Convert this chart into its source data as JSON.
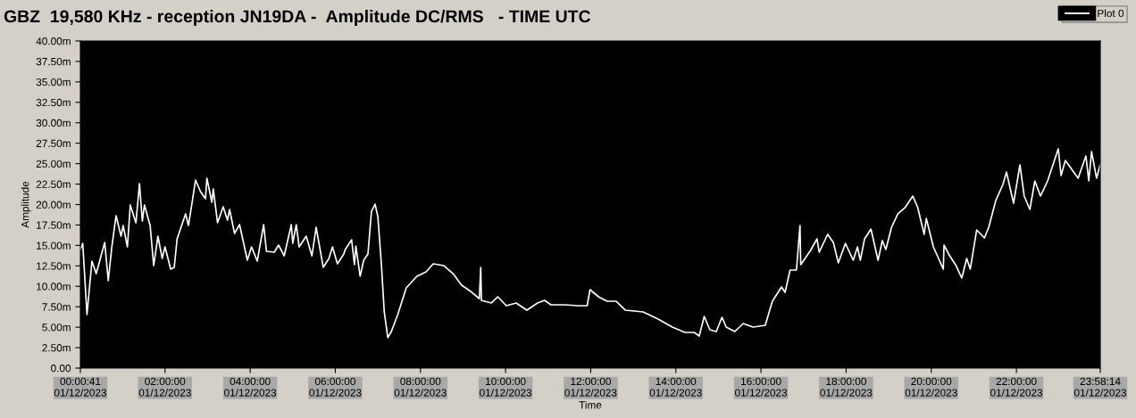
{
  "chart_data": {
    "type": "line",
    "title": "GBZ  19,580 KHz - reception JN19DA -  Amplitude DC/RMS   - TIME UTC",
    "xlabel": "Time",
    "ylabel": "Amplitude",
    "xlim": [
      "2023-12-01T00:00:41",
      "2023-12-01T23:58:14"
    ],
    "ylim": [
      0,
      40
    ],
    "xticks": [
      {
        "value": "2023-12-01T00:00:41",
        "label": "00:00:41\n01/12/2023"
      },
      {
        "value": "2023-12-01T02:00",
        "label": "02:00:00\n01/12/2023"
      },
      {
        "value": "2023-12-01T04:00",
        "label": "04:00:00\n01/12/2023"
      },
      {
        "value": "2023-12-01T06:00",
        "label": "06:00:00\n01/12/2023"
      },
      {
        "value": "2023-12-01T08:00",
        "label": "08:00:00\n01/12/2023"
      },
      {
        "value": "2023-12-01T10:00",
        "label": "10:00:00\n01/12/2023"
      },
      {
        "value": "2023-12-01T12:00",
        "label": "12:00:00\n01/12/2023"
      },
      {
        "value": "2023-12-01T14:00",
        "label": "14:00:00\n01/12/2023"
      },
      {
        "value": "2023-12-01T16:00",
        "label": "16:00:00\n01/12/2023"
      },
      {
        "value": "2023-12-01T18:00",
        "label": "18:00:00\n01/12/2023"
      },
      {
        "value": "2023-12-01T20:00",
        "label": "20:00:00\n01/12/2023"
      },
      {
        "value": "2023-12-01T22:00",
        "label": "22:00:00\n01/12/2023"
      },
      {
        "value": "2023-12-01T23:58:14",
        "label": "23:58:14\n01/12/2023"
      }
    ],
    "yticks": [
      {
        "value": 0,
        "label": "0.00"
      },
      {
        "value": 2.5,
        "label": "2.50m"
      },
      {
        "value": 5,
        "label": "5.00m"
      },
      {
        "value": 7.5,
        "label": "7.50m"
      },
      {
        "value": 10,
        "label": "10.00m"
      },
      {
        "value": 12.5,
        "label": "12.50m"
      },
      {
        "value": 15,
        "label": "15.00m"
      },
      {
        "value": 17.5,
        "label": "17.50m"
      },
      {
        "value": 20,
        "label": "20.00m"
      },
      {
        "value": 22.5,
        "label": "22.50m"
      },
      {
        "value": 25,
        "label": "25.00m"
      },
      {
        "value": 27.5,
        "label": "27.50m"
      },
      {
        "value": 30,
        "label": "30.00m"
      },
      {
        "value": 32.5,
        "label": "32.50m"
      },
      {
        "value": 35,
        "label": "35.00m"
      },
      {
        "value": 37.5,
        "label": "37.50m"
      },
      {
        "value": 40,
        "label": "40.00m"
      }
    ],
    "grid": false,
    "legend": "top right",
    "marker": "none",
    "line_style": "solid",
    "x": [
      "2023-12-01T00:00:41",
      "2023-12-01T00:04",
      "2023-12-01T00:10",
      "2023-12-01T00:13",
      "2023-12-01T00:17",
      "2023-12-01T00:23",
      "2023-12-01T00:35",
      "2023-12-01T00:40",
      "2023-12-01T00:45",
      "2023-12-01T00:51",
      "2023-12-01T00:58",
      "2023-12-01T01:01",
      "2023-12-01T01:07",
      "2023-12-01T01:11",
      "2023-12-01T01:19",
      "2023-12-01T01:24",
      "2023-12-01T01:28",
      "2023-12-01T01:31",
      "2023-12-01T01:39",
      "2023-12-01T01:44",
      "2023-12-01T01:50",
      "2023-12-01T01:56",
      "2023-12-01T02:00",
      "2023-12-01T02:08",
      "2023-12-01T02:13",
      "2023-12-01T02:17",
      "2023-12-01T02:29",
      "2023-12-01T02:33",
      "2023-12-01T02:38",
      "2023-12-01T02:43",
      "2023-12-01T02:50",
      "2023-12-01T02:57",
      "2023-12-01T02:59",
      "2023-12-01T03:06",
      "2023-12-01T03:08",
      "2023-12-01T03:14",
      "2023-12-01T03:22",
      "2023-12-01T03:28",
      "2023-12-01T03:31",
      "2023-12-01T03:38",
      "2023-12-01T03:45",
      "2023-12-01T03:50",
      "2023-12-01T03:56",
      "2023-12-01T04:02",
      "2023-12-01T04:10",
      "2023-12-01T04:19",
      "2023-12-01T04:23",
      "2023-12-01T04:34",
      "2023-12-01T04:40",
      "2023-12-01T04:48",
      "2023-12-01T04:58",
      "2023-12-01T05:00",
      "2023-12-01T05:05",
      "2023-12-01T05:09",
      "2023-12-01T05:19",
      "2023-12-01T05:27",
      "2023-12-01T05:33",
      "2023-12-01T05:43",
      "2023-12-01T05:51",
      "2023-12-01T05:56",
      "2023-12-01T06:03",
      "2023-12-01T06:12",
      "2023-12-01T06:14",
      "2023-12-01T06:23",
      "2023-12-01T06:27",
      "2023-12-01T06:29",
      "2023-12-01T06:35",
      "2023-12-01T06:40",
      "2023-12-01T06:46",
      "2023-12-01T06:51",
      "2023-12-01T06:56",
      "2023-12-01T07:00",
      "2023-12-01T07:05",
      "2023-12-01T07:09",
      "2023-12-01T07:14",
      "2023-12-01T07:19",
      "2023-12-01T07:28",
      "2023-12-01T07:40",
      "2023-12-01T07:55",
      "2023-12-01T08:08",
      "2023-12-01T08:18",
      "2023-12-01T08:33",
      "2023-12-01T08:46",
      "2023-12-01T08:58",
      "2023-12-01T09:11",
      "2023-12-01T09:23",
      "2023-12-01T09:25",
      "2023-12-01T09:26",
      "2023-12-01T09:40",
      "2023-12-01T09:49",
      "2023-12-01T10:01",
      "2023-12-01T10:15",
      "2023-12-01T10:30",
      "2023-12-01T10:45",
      "2023-12-01T10:55",
      "2023-12-01T11:04",
      "2023-12-01T11:24",
      "2023-12-01T11:42",
      "2023-12-01T11:55",
      "2023-12-01T11:59",
      "2023-12-01T12:11",
      "2023-12-01T12:23",
      "2023-12-01T12:36",
      "2023-12-01T12:49",
      "2023-12-01T13:14",
      "2023-12-01T13:35",
      "2023-12-01T13:55",
      "2023-12-01T14:13",
      "2023-12-01T14:26",
      "2023-12-01T14:33",
      "2023-12-01T14:40",
      "2023-12-01T14:48",
      "2023-12-01T14:57",
      "2023-12-01T15:05",
      "2023-12-01T15:11",
      "2023-12-01T15:23",
      "2023-12-01T15:35",
      "2023-12-01T15:49",
      "2023-12-01T16:06",
      "2023-12-01T16:16",
      "2023-12-01T16:29",
      "2023-12-01T16:34",
      "2023-12-01T16:41",
      "2023-12-01T16:50",
      "2023-12-01T16:55",
      "2023-12-01T16:56",
      "2023-12-01T17:09",
      "2023-12-01T17:19",
      "2023-12-01T17:22",
      "2023-12-01T17:34",
      "2023-12-01T17:42",
      "2023-12-01T17:49",
      "2023-12-01T17:59",
      "2023-12-01T18:10",
      "2023-12-01T18:16",
      "2023-12-01T18:20",
      "2023-12-01T18:26",
      "2023-12-01T18:35",
      "2023-12-01T18:45",
      "2023-12-01T18:51",
      "2023-12-01T18:56",
      "2023-12-01T19:04",
      "2023-12-01T19:13",
      "2023-12-01T19:23",
      "2023-12-01T19:34",
      "2023-12-01T19:41",
      "2023-12-01T19:50",
      "2023-12-01T19:53",
      "2023-12-01T20:03",
      "2023-12-01T20:17",
      "2023-12-01T20:18",
      "2023-12-01T20:26",
      "2023-12-01T20:35",
      "2023-12-01T20:43",
      "2023-12-01T20:50",
      "2023-12-01T20:55",
      "2023-12-01T21:04",
      "2023-12-01T21:15",
      "2023-12-01T21:21",
      "2023-12-01T21:31",
      "2023-12-01T21:41",
      "2023-12-01T21:46",
      "2023-12-01T21:56",
      "2023-12-01T22:05",
      "2023-12-01T22:11",
      "2023-12-01T22:19",
      "2023-12-01T22:26",
      "2023-12-01T22:34",
      "2023-12-01T22:44",
      "2023-12-01T22:59",
      "2023-12-01T23:03",
      "2023-12-01T23:09",
      "2023-12-01T23:27",
      "2023-12-01T23:38",
      "2023-12-01T23:42",
      "2023-12-01T23:46",
      "2023-12-01T23:53",
      "2023-12-01T23:58"
    ],
    "series": [
      {
        "name": "Plot 0",
        "color": "#ffffff",
        "values": [
          14.5,
          15.26,
          6.54,
          9.37,
          13.08,
          11.55,
          15.37,
          10.68,
          14.82,
          18.64,
          16.13,
          17.44,
          14.82,
          19.95,
          17.77,
          22.56,
          17.98,
          19.95,
          17.44,
          12.53,
          16.13,
          13.41,
          14.82,
          12.1,
          12.32,
          15.8,
          18.86,
          17.44,
          20.16,
          23.0,
          21.58,
          20.71,
          23.22,
          20.27,
          21.91,
          17.77,
          19.73,
          18.09,
          19.4,
          16.46,
          17.55,
          15.59,
          13.19,
          14.82,
          13.08,
          17.55,
          14.28,
          14.17,
          15.04,
          13.73,
          17.55,
          15.26,
          17.55,
          14.82,
          16.13,
          13.73,
          17.22,
          12.32,
          13.41,
          14.82,
          12.75,
          13.95,
          14.5,
          15.69,
          12.64,
          14.93,
          11.23,
          13.19,
          13.95,
          19.18,
          20.05,
          18.53,
          12.64,
          6.87,
          3.71,
          4.47,
          6.54,
          9.81,
          11.23,
          11.77,
          12.75,
          12.53,
          11.55,
          10.14,
          9.37,
          8.5,
          12.32,
          8.28,
          7.96,
          8.72,
          7.63,
          7.96,
          7.08,
          7.96,
          8.28,
          7.74,
          7.74,
          7.63,
          7.63,
          9.59,
          8.72,
          8.17,
          8.17,
          7.08,
          6.87,
          5.99,
          5.01,
          4.36,
          4.36,
          3.92,
          6.32,
          4.69,
          4.47,
          6.21,
          5.01,
          4.47,
          5.45,
          5.01,
          5.23,
          8.17,
          9.92,
          9.26,
          11.99,
          11.99,
          17.44,
          12.64,
          14.28,
          15.8,
          14.17,
          16.35,
          15.37,
          12.86,
          15.26,
          13.19,
          14.82,
          13.19,
          15.8,
          17.0,
          13.19,
          15.59,
          14.5,
          17.22,
          18.86,
          19.62,
          21.04,
          19.62,
          16.35,
          18.31,
          14.82,
          12.1,
          15.04,
          13.73,
          12.53,
          11.01,
          13.41,
          12.1,
          16.89,
          15.91,
          17.22,
          20.49,
          22.45,
          23.98,
          20.16,
          24.85,
          21.04,
          19.4,
          22.89,
          21.04,
          22.89,
          26.81,
          23.54,
          25.39,
          23.22,
          25.94,
          22.89,
          26.48,
          23.22,
          24.85
        ]
      }
    ]
  }
}
